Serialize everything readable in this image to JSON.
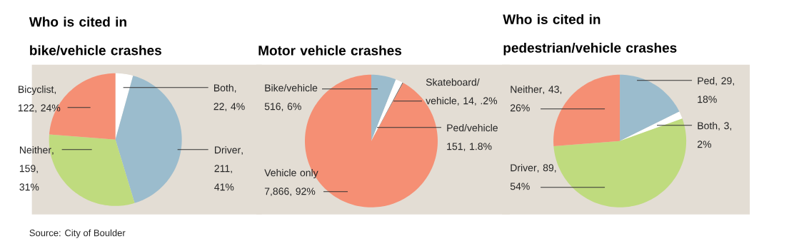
{
  "chart_data": [
    {
      "type": "pie",
      "title": "Who is cited in bike/vehicle crashes",
      "categories": [
        "Both",
        "Driver",
        "Neither",
        "Bicyclist"
      ],
      "values": [
        22,
        211,
        159,
        122
      ],
      "value_labels": [
        ", 22, 4%",
        ", 211, 41%",
        ", 159, 31%",
        ", 122, 24%"
      ],
      "colors": [
        "#ffffff",
        "#9bbccd",
        "#bfdb7e",
        "#f58f74"
      ],
      "annotations": [
        "Source: City of Boulder"
      ]
    },
    {
      "type": "pie",
      "title": "Motor vehicle crashes",
      "categories": [
        "Bike/vehicle",
        "Ped/vehicle",
        "Skateboard/vehicle",
        "Vehicle only"
      ],
      "values": [
        516,
        151,
        14,
        7866
      ],
      "value_labels": [
        "516, 6%",
        "151, 1.8%",
        ", 14, .2%",
        "7,866, 92%"
      ],
      "colors": [
        "#9bbccd",
        "#ffffff",
        "#555555",
        "#f58f74"
      ]
    },
    {
      "type": "pie",
      "title": "Who is cited in pedestrian/vehicle crashes",
      "categories": [
        "Ped",
        "Both",
        "Driver",
        "Neither"
      ],
      "values": [
        29,
        3,
        89,
        43
      ],
      "value_labels": [
        ", 29, 18%",
        ", 3, 2%",
        ", 89, 54%",
        ", 43, 26%"
      ],
      "colors": [
        "#9bbccd",
        "#ffffff",
        "#bfdb7e",
        "#f58f74"
      ]
    }
  ]
}
